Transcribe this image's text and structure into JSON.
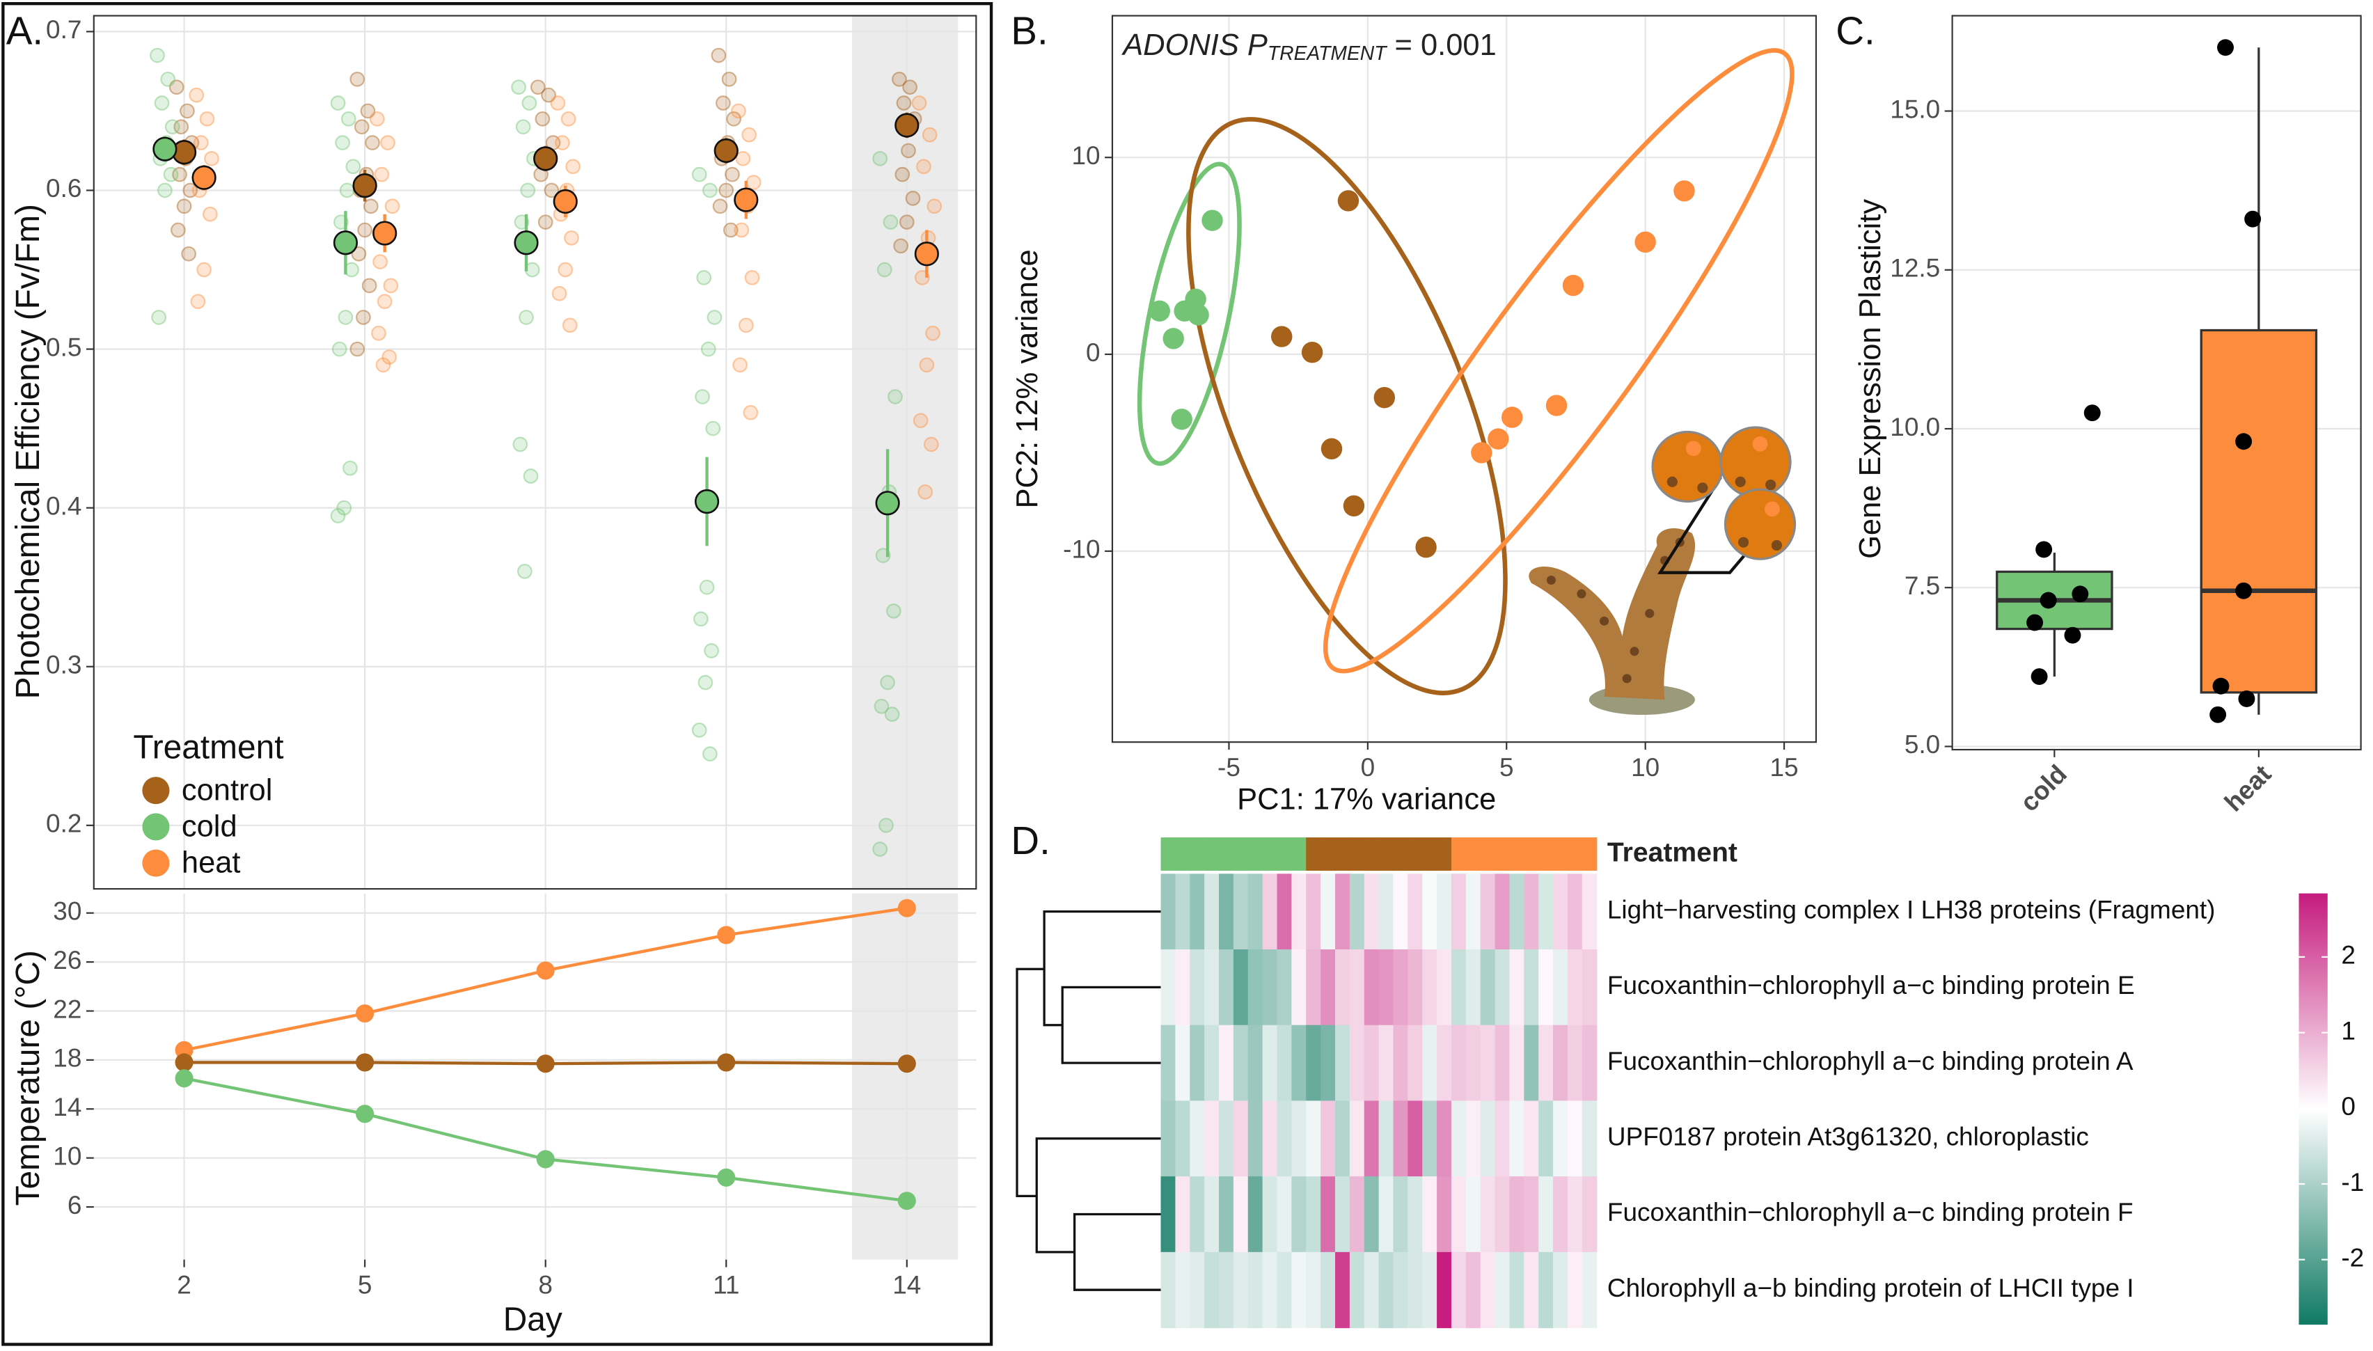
{
  "chart_data": [
    {
      "type": "dot_error",
      "label": "A.",
      "y_label": "Photochemical Efficiency (Fv/Fm)",
      "legend_title": "Treatment",
      "legend": "bottom-left",
      "grid": true,
      "xlim": [
        0.5,
        15.15
      ],
      "xticks": [
        2,
        5,
        8,
        11,
        14
      ],
      "ylim": [
        0.16,
        0.71
      ],
      "yticks": [
        0.2,
        0.3,
        0.4,
        0.5,
        0.6,
        0.7
      ],
      "series": [
        {
          "name": "control",
          "color": "#a6611a",
          "x": [
            2,
            5,
            8,
            11,
            14
          ],
          "values": [
            0.624,
            0.603,
            0.62,
            0.625,
            0.641
          ],
          "errors": [
            0.008,
            0.01,
            0.008,
            0.008,
            0.008
          ],
          "points": [
            [
              0.665,
              0.65,
              0.64,
              0.63,
              0.62,
              0.61,
              0.6,
              0.59,
              0.575,
              0.56
            ],
            [
              0.67,
              0.65,
              0.64,
              0.63,
              0.61,
              0.6,
              0.59,
              0.575,
              0.56,
              0.54,
              0.52,
              0.5
            ],
            [
              0.665,
              0.66,
              0.645,
              0.63,
              0.62,
              0.61,
              0.6,
              0.58
            ],
            [
              0.685,
              0.67,
              0.655,
              0.645,
              0.63,
              0.62,
              0.61,
              0.6,
              0.59,
              0.575
            ],
            [
              0.67,
              0.665,
              0.655,
              0.645,
              0.625,
              0.61,
              0.595,
              0.58,
              0.565
            ]
          ]
        },
        {
          "name": "cold",
          "color": "#74c476",
          "x": [
            2,
            5,
            8,
            11,
            14
          ],
          "values": [
            0.626,
            0.567,
            0.567,
            0.404,
            0.403
          ],
          "errors": [
            0.008,
            0.02,
            0.018,
            0.028,
            0.034
          ],
          "points": [
            [
              0.685,
              0.67,
              0.655,
              0.64,
              0.63,
              0.62,
              0.61,
              0.6,
              0.52
            ],
            [
              0.655,
              0.645,
              0.63,
              0.615,
              0.6,
              0.58,
              0.55,
              0.52,
              0.5,
              0.425,
              0.4,
              0.395
            ],
            [
              0.665,
              0.655,
              0.64,
              0.62,
              0.6,
              0.58,
              0.55,
              0.52,
              0.44,
              0.42,
              0.36
            ],
            [
              0.61,
              0.6,
              0.545,
              0.52,
              0.5,
              0.47,
              0.45,
              0.35,
              0.33,
              0.31,
              0.29,
              0.26,
              0.245
            ],
            [
              0.62,
              0.58,
              0.55,
              0.47,
              0.41,
              0.37,
              0.335,
              0.29,
              0.275,
              0.27,
              0.2,
              0.185
            ]
          ]
        },
        {
          "name": "heat",
          "color": "#fd8d3c",
          "x": [
            2,
            5,
            8,
            11,
            14
          ],
          "values": [
            0.608,
            0.573,
            0.593,
            0.594,
            0.56
          ],
          "errors": [
            0.008,
            0.012,
            0.01,
            0.012,
            0.015
          ],
          "points": [
            [
              0.66,
              0.645,
              0.63,
              0.62,
              0.61,
              0.6,
              0.585,
              0.55,
              0.53
            ],
            [
              0.645,
              0.63,
              0.61,
              0.59,
              0.57,
              0.555,
              0.54,
              0.53,
              0.51,
              0.495,
              0.49
            ],
            [
              0.655,
              0.645,
              0.63,
              0.615,
              0.6,
              0.585,
              0.57,
              0.55,
              0.535,
              0.515
            ],
            [
              0.65,
              0.635,
              0.62,
              0.605,
              0.59,
              0.575,
              0.545,
              0.515,
              0.49,
              0.46
            ],
            [
              0.655,
              0.635,
              0.615,
              0.59,
              0.57,
              0.545,
              0.51,
              0.49,
              0.455,
              0.44,
              0.41
            ]
          ]
        }
      ]
    },
    {
      "type": "line",
      "y_label": "Temperature (°C)",
      "x_label": "Day",
      "grid": true,
      "xlim": [
        0.5,
        15.15
      ],
      "xticks": [
        2,
        5,
        8,
        11,
        14
      ],
      "ylim": [
        1.7,
        31.6
      ],
      "yticks": [
        6,
        10,
        14,
        18,
        22,
        26,
        30
      ],
      "series": [
        {
          "name": "heat",
          "color": "#fd8d3c",
          "x": [
            2,
            5,
            8,
            11,
            14
          ],
          "values": [
            18.8,
            21.8,
            25.3,
            28.2,
            30.4
          ]
        },
        {
          "name": "control",
          "color": "#a6611a",
          "x": [
            2,
            5,
            8,
            11,
            14
          ],
          "values": [
            17.8,
            17.8,
            17.7,
            17.8,
            17.7
          ]
        },
        {
          "name": "cold",
          "color": "#74c476",
          "x": [
            2,
            5,
            8,
            11,
            14
          ],
          "values": [
            16.5,
            13.6,
            9.9,
            8.4,
            6.5
          ]
        }
      ]
    },
    {
      "type": "scatter",
      "label": "B.",
      "x_label": "PC1: 17% variance",
      "y_label": "PC2: 12% variance",
      "grid": true,
      "annotation": {
        "text": "ADONIS P",
        "subscript": "TREATMENT",
        "suffix": " = 0.001"
      },
      "xlim": [
        -9.2,
        16.15
      ],
      "xticks": [
        -5,
        0,
        5,
        10,
        15
      ],
      "ylim": [
        -19.7,
        17.2
      ],
      "yticks": [
        -10,
        0,
        10
      ],
      "series": [
        {
          "name": "cold",
          "color": "#74c476",
          "x": [
            -5.6,
            -7.5,
            -7.0,
            -6.6,
            -6.2,
            -6.1,
            -6.7
          ],
          "values": [
            6.8,
            2.2,
            0.8,
            2.2,
            2.8,
            2.0,
            -3.3
          ]
        },
        {
          "name": "control",
          "color": "#a6611a",
          "x": [
            -0.7,
            -3.1,
            -2.0,
            0.6,
            -1.3,
            -0.5,
            2.1
          ],
          "values": [
            7.8,
            0.9,
            0.1,
            -2.2,
            -4.8,
            -7.7,
            -9.8
          ]
        },
        {
          "name": "heat",
          "color": "#fd8d3c",
          "x": [
            11.4,
            10.0,
            7.4,
            6.8,
            5.2,
            4.7,
            4.1
          ],
          "values": [
            8.3,
            5.7,
            3.5,
            -2.6,
            -3.2,
            -4.3,
            -5.0
          ]
        }
      ]
    },
    {
      "type": "box",
      "label": "C.",
      "y_label": "Gene Expression Plasticity",
      "grid": true,
      "categories": [
        "cold",
        "heat"
      ],
      "ylim": [
        4.95,
        16.5
      ],
      "yticks": [
        {
          "value": 5,
          "label": "5.0"
        },
        7.5,
        {
          "value": 10,
          "label": "10.0"
        },
        12.5,
        {
          "value": 15,
          "label": "15.0"
        }
      ],
      "boxes": [
        {
          "color": "#74c476",
          "whisker_low": 6.1,
          "q1": 6.85,
          "median": 7.3,
          "q3": 7.75,
          "whisker_high": 8.05,
          "points": [
            10.25,
            8.1,
            7.3,
            7.4,
            6.95,
            6.75,
            6.1
          ]
        },
        {
          "color": "#fd8d3c",
          "whisker_low": 5.5,
          "q1": 5.85,
          "median": 7.45,
          "q3": 11.55,
          "whisker_high": 16.0,
          "points": [
            16.0,
            13.3,
            9.8,
            7.45,
            5.95,
            5.75,
            5.5
          ]
        }
      ]
    },
    {
      "type": "heatmap",
      "label": "D.",
      "legend_title": "Treatment",
      "rows": [
        "Light−harvesting complex I LH38 proteins (Fragment)",
        "Fucoxanthin−chlorophyll a−c binding protein E",
        "Fucoxanthin−chlorophyll a−c binding protein A",
        "UPF0187 protein At3g61320, chloroplastic",
        "Fucoxanthin−chlorophyll a−c binding protein F",
        "Chlorophyll a−b binding protein of LHCII type I"
      ],
      "values": [
        [
          -1.2,
          -0.8,
          -1.3,
          -0.5,
          -1.6,
          -0.9,
          -1.1,
          0.6,
          1.8,
          0.3,
          0.8,
          -0.2,
          1.3,
          -0.9,
          0.4,
          -0.4,
          0.1,
          0.5,
          -0.1,
          -0.3,
          0.6,
          -0.2,
          0.7,
          1.2,
          -0.8,
          0.9,
          -0.5,
          0.5,
          0.8,
          0.3
        ],
        [
          -0.3,
          0.2,
          -0.6,
          -0.4,
          -1.0,
          -1.9,
          -1.3,
          -1.2,
          -1.0,
          0.2,
          0.9,
          1.4,
          0.6,
          0.5,
          1.4,
          1.3,
          1.1,
          0.9,
          0.5,
          0.3,
          -0.7,
          -0.4,
          -1.0,
          -0.6,
          0.2,
          -0.7,
          0.1,
          -0.3,
          0.5,
          0.6
        ],
        [
          -1.0,
          -0.2,
          -1.1,
          -0.6,
          0.2,
          -0.9,
          -1.2,
          -0.4,
          -0.7,
          -1.3,
          -1.8,
          -1.6,
          -0.7,
          0.5,
          0.7,
          0.4,
          0.9,
          0.6,
          -0.3,
          0.5,
          0.7,
          0.6,
          0.5,
          0.8,
          0.3,
          -1.3,
          0.4,
          0.9,
          0.6,
          0.8
        ],
        [
          -1.1,
          -0.8,
          -0.3,
          0.3,
          -0.6,
          0.5,
          -1.2,
          0.4,
          -0.6,
          -0.4,
          -0.2,
          0.7,
          -0.9,
          0.3,
          1.7,
          -0.5,
          1.3,
          2.0,
          -0.9,
          1.4,
          -0.3,
          0.2,
          -0.4,
          0.5,
          -0.2,
          0.3,
          -0.8,
          -0.2,
          0.1,
          -0.4
        ],
        [
          -2.4,
          0.3,
          -0.8,
          -0.4,
          -1.3,
          0.2,
          -1.8,
          -0.5,
          -0.3,
          -0.9,
          -0.7,
          1.8,
          -0.6,
          0.9,
          -1.4,
          -0.3,
          -0.8,
          -0.5,
          0.2,
          1.3,
          0.3,
          -0.2,
          0.4,
          0.6,
          0.9,
          0.8,
          -0.3,
          0.7,
          0.4,
          0.6
        ],
        [
          -0.5,
          -0.3,
          -0.4,
          -0.7,
          -0.6,
          -0.4,
          -0.5,
          -0.3,
          -0.5,
          -0.2,
          -0.3,
          -0.6,
          2.4,
          -0.7,
          -0.4,
          -0.8,
          -0.6,
          -0.5,
          -0.4,
          2.8,
          0.5,
          0.8,
          0.3,
          -0.3,
          -0.7,
          0.3,
          -0.8,
          -0.4,
          0.2,
          -0.3
        ]
      ],
      "column_colors": [
        "#74c476",
        "#74c476",
        "#74c476",
        "#74c476",
        "#74c476",
        "#74c476",
        "#74c476",
        "#74c476",
        "#74c476",
        "#74c476",
        "#a6611a",
        "#a6611a",
        "#a6611a",
        "#a6611a",
        "#a6611a",
        "#a6611a",
        "#a6611a",
        "#a6611a",
        "#a6611a",
        "#a6611a",
        "#fd8d3c",
        "#fd8d3c",
        "#fd8d3c",
        "#fd8d3c",
        "#fd8d3c",
        "#fd8d3c",
        "#fd8d3c",
        "#fd8d3c",
        "#fd8d3c",
        "#fd8d3c"
      ],
      "clim": [
        -2.86,
        2.84
      ],
      "cticks": [
        -2,
        -1,
        0,
        1,
        2
      ],
      "colorscale": [
        "#0f7a63",
        "#ffffff",
        "#c51b7d"
      ]
    }
  ]
}
